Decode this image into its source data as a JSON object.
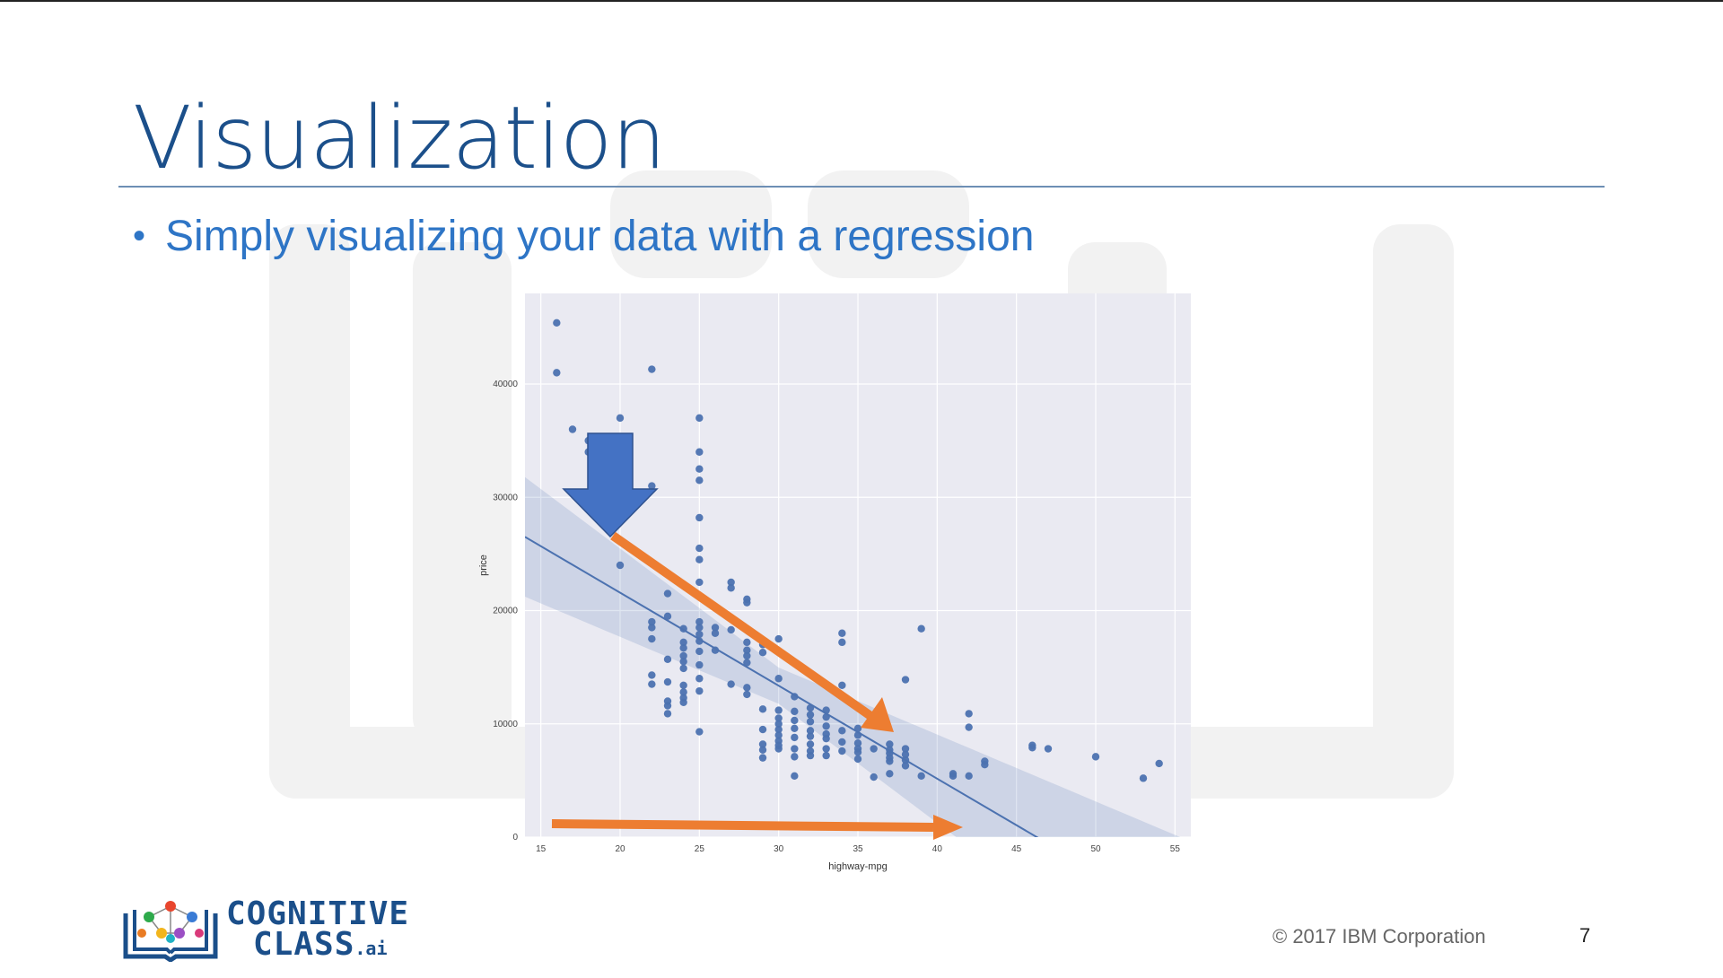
{
  "slide": {
    "title": "Visualization",
    "bullet": "Simply visualizing your data with a regression",
    "copyright": "© 2017 IBM Corporation",
    "page_number": "7"
  },
  "logo": {
    "line1": "COGNITIVE",
    "line2": "CLASS",
    "suffix": ".ai"
  },
  "chart_data": {
    "type": "scatter",
    "xlabel": "highway-mpg",
    "ylabel": "price",
    "xlim": [
      14,
      56
    ],
    "ylim": [
      0,
      48000
    ],
    "xticks": [
      15,
      20,
      25,
      30,
      35,
      40,
      45,
      50,
      55
    ],
    "yticks": [
      0,
      10000,
      20000,
      30000,
      40000
    ],
    "grid": true,
    "point_color": "#4c72b0",
    "background": "#eaeaf2",
    "regression": {
      "intercept": 38000,
      "slope": -821,
      "x_range": [
        14,
        56
      ]
    },
    "points": [
      [
        16,
        45400
      ],
      [
        16,
        41000
      ],
      [
        17,
        36000
      ],
      [
        18,
        35000
      ],
      [
        18,
        34000
      ],
      [
        19,
        32500
      ],
      [
        20,
        37000
      ],
      [
        20,
        24000
      ],
      [
        22,
        41300
      ],
      [
        22,
        31000
      ],
      [
        22,
        19000
      ],
      [
        22,
        18500
      ],
      [
        22,
        17500
      ],
      [
        22,
        14300
      ],
      [
        22,
        13500
      ],
      [
        23,
        21500
      ],
      [
        23,
        19500
      ],
      [
        23,
        15700
      ],
      [
        23,
        13700
      ],
      [
        23,
        12000
      ],
      [
        23,
        11600
      ],
      [
        23,
        10900
      ],
      [
        24,
        18400
      ],
      [
        24,
        17200
      ],
      [
        24,
        16700
      ],
      [
        24,
        16000
      ],
      [
        24,
        15500
      ],
      [
        24,
        14900
      ],
      [
        24,
        13400
      ],
      [
        24,
        12800
      ],
      [
        24,
        12300
      ],
      [
        24,
        11900
      ],
      [
        25,
        37000
      ],
      [
        25,
        34000
      ],
      [
        25,
        32500
      ],
      [
        25,
        31500
      ],
      [
        25,
        28200
      ],
      [
        25,
        25500
      ],
      [
        25,
        24500
      ],
      [
        25,
        22500
      ],
      [
        25,
        19000
      ],
      [
        25,
        18500
      ],
      [
        25,
        17900
      ],
      [
        25,
        17300
      ],
      [
        25,
        16400
      ],
      [
        25,
        15200
      ],
      [
        25,
        14000
      ],
      [
        25,
        12900
      ],
      [
        25,
        9300
      ],
      [
        26,
        18500
      ],
      [
        26,
        18000
      ],
      [
        26,
        16500
      ],
      [
        27,
        22500
      ],
      [
        27,
        22000
      ],
      [
        27,
        18300
      ],
      [
        27,
        13500
      ],
      [
        28,
        21000
      ],
      [
        28,
        20700
      ],
      [
        28,
        17200
      ],
      [
        28,
        16500
      ],
      [
        28,
        16000
      ],
      [
        28,
        15400
      ],
      [
        28,
        13200
      ],
      [
        28,
        12600
      ],
      [
        29,
        17000
      ],
      [
        29,
        16300
      ],
      [
        29,
        11300
      ],
      [
        29,
        9500
      ],
      [
        29,
        8200
      ],
      [
        29,
        7700
      ],
      [
        29,
        7000
      ],
      [
        30,
        17500
      ],
      [
        30,
        14000
      ],
      [
        30,
        11200
      ],
      [
        30,
        10500
      ],
      [
        30,
        10000
      ],
      [
        30,
        9500
      ],
      [
        30,
        9000
      ],
      [
        30,
        8500
      ],
      [
        30,
        8100
      ],
      [
        30,
        7800
      ],
      [
        31,
        12400
      ],
      [
        31,
        11100
      ],
      [
        31,
        10300
      ],
      [
        31,
        9600
      ],
      [
        31,
        8800
      ],
      [
        31,
        7800
      ],
      [
        31,
        7100
      ],
      [
        31,
        5400
      ],
      [
        32,
        11400
      ],
      [
        32,
        10800
      ],
      [
        32,
        10200
      ],
      [
        32,
        9400
      ],
      [
        32,
        8900
      ],
      [
        32,
        8200
      ],
      [
        32,
        7600
      ],
      [
        32,
        7200
      ],
      [
        33,
        11200
      ],
      [
        33,
        10600
      ],
      [
        33,
        9800
      ],
      [
        33,
        9100
      ],
      [
        33,
        8700
      ],
      [
        33,
        7800
      ],
      [
        33,
        7200
      ],
      [
        34,
        18000
      ],
      [
        34,
        17200
      ],
      [
        34,
        13400
      ],
      [
        34,
        9400
      ],
      [
        34,
        8400
      ],
      [
        34,
        7600
      ],
      [
        35,
        9600
      ],
      [
        35,
        9000
      ],
      [
        35,
        8300
      ],
      [
        35,
        7800
      ],
      [
        35,
        7500
      ],
      [
        35,
        6900
      ],
      [
        36,
        7800
      ],
      [
        36,
        5300
      ],
      [
        37,
        8200
      ],
      [
        37,
        7700
      ],
      [
        37,
        7400
      ],
      [
        37,
        7000
      ],
      [
        37,
        6700
      ],
      [
        37,
        5600
      ],
      [
        38,
        7800
      ],
      [
        38,
        7300
      ],
      [
        38,
        6800
      ],
      [
        38,
        6300
      ],
      [
        38,
        13900
      ],
      [
        39,
        18400
      ],
      [
        39,
        5400
      ],
      [
        41,
        5600
      ],
      [
        41,
        5400
      ],
      [
        42,
        10900
      ],
      [
        42,
        9700
      ],
      [
        42,
        5400
      ],
      [
        43,
        6700
      ],
      [
        43,
        6400
      ],
      [
        46,
        8100
      ],
      [
        46,
        7900
      ],
      [
        47,
        7800
      ],
      [
        50,
        7100
      ],
      [
        53,
        5200
      ],
      [
        54,
        6500
      ]
    ]
  }
}
